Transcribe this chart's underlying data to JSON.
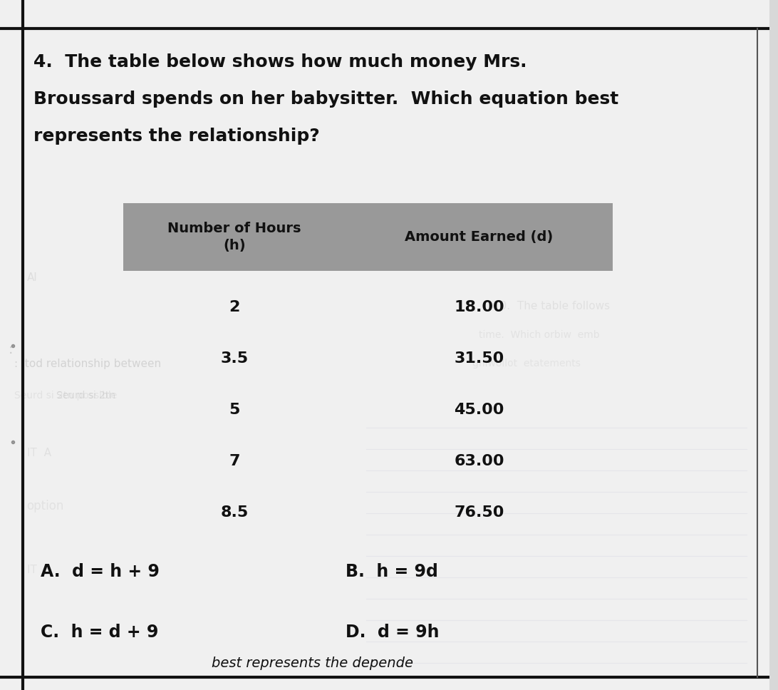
{
  "question_lines": [
    "4.  The table below shows how much money Mrs.",
    "Broussard spends on her babysitter.  Which equation best",
    "represents the relationship?"
  ],
  "table_header_col1": "Number of Hours\n(h)",
  "table_header_col2": "Amount Earned (d)",
  "table_rows": [
    [
      "2",
      "18.00"
    ],
    [
      "3.5",
      "31.50"
    ],
    [
      "5",
      "45.00"
    ],
    [
      "7",
      "63.00"
    ],
    [
      "8.5",
      "76.50"
    ]
  ],
  "header_bg": "#999999",
  "choices_left": [
    [
      "A.",
      "d = h + 9"
    ],
    [
      "C.",
      "h = d + 9"
    ]
  ],
  "choices_right": [
    [
      "B.",
      "h = 9d"
    ],
    [
      "D.",
      "d = 9h"
    ]
  ],
  "bg_color": "#d8d8d8",
  "paper_color": "#f0f0f0",
  "border_color": "#111111",
  "bottom_text": "best represents the depende",
  "font_size_question": 18,
  "font_size_table_header": 14,
  "font_size_table_data": 16,
  "font_size_choices": 17
}
